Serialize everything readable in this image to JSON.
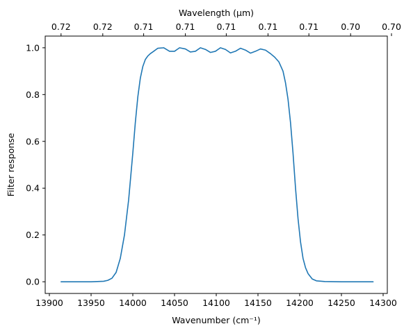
{
  "chart_data": {
    "type": "line",
    "xlabel_bottom": "Wavenumber (cm⁻¹)",
    "xlabel_top": "Wavelength (μm)",
    "ylabel": "Filter response",
    "xlim": [
      13895,
      14305
    ],
    "ylim": [
      -0.05,
      1.05
    ],
    "x_ticks_bottom": [
      13900,
      13950,
      14000,
      14050,
      14100,
      14150,
      14200,
      14250,
      14300
    ],
    "x_ticks_bottom_labels": [
      "13900",
      "13950",
      "14000",
      "14050",
      "14100",
      "14150",
      "14200",
      "14250",
      "14300"
    ],
    "x_ticks_top_labels": [
      "0.72",
      "0.72",
      "0.71",
      "0.71",
      "0.71",
      "0.71",
      "0.71",
      "0.70",
      "0.70",
      "0.70"
    ],
    "x_ticks_top_positions": [
      13914,
      13964,
      14013,
      14063,
      14112,
      14162,
      14211,
      14261,
      14310,
      14360
    ],
    "y_ticks": [
      0.0,
      0.2,
      0.4,
      0.6,
      0.8,
      1.0
    ],
    "y_ticks_labels": [
      "0.0",
      "0.2",
      "0.4",
      "0.6",
      "0.8",
      "1.0"
    ],
    "grid": false,
    "series": [
      {
        "color": "#1f77b4",
        "x": [
          13914,
          13930,
          13950,
          13965,
          13970,
          13975,
          13980,
          13985,
          13990,
          13995,
          14000,
          14003,
          14006,
          14009,
          14012,
          14015,
          14018,
          14021,
          14025,
          14030,
          14037,
          14044,
          14050,
          14056,
          14063,
          14069,
          14075,
          14081,
          14087,
          14093,
          14099,
          14105,
          14111,
          14117,
          14123,
          14129,
          14135,
          14141,
          14147,
          14153,
          14159,
          14165,
          14170,
          14175,
          14180,
          14183,
          14186,
          14189,
          14192,
          14195,
          14198,
          14201,
          14204,
          14207,
          14210,
          14215,
          14220,
          14230,
          14250,
          14270,
          14288
        ],
        "y": [
          0.0,
          0.0,
          0.0,
          0.002,
          0.006,
          0.015,
          0.04,
          0.1,
          0.2,
          0.35,
          0.55,
          0.68,
          0.79,
          0.87,
          0.92,
          0.95,
          0.965,
          0.975,
          0.985,
          0.998,
          1.0,
          0.985,
          0.985,
          1.0,
          0.995,
          0.982,
          0.985,
          1.0,
          0.993,
          0.98,
          0.985,
          1.0,
          0.993,
          0.978,
          0.985,
          0.998,
          0.99,
          0.977,
          0.985,
          0.995,
          0.99,
          0.975,
          0.96,
          0.94,
          0.9,
          0.85,
          0.78,
          0.68,
          0.55,
          0.4,
          0.27,
          0.17,
          0.1,
          0.06,
          0.035,
          0.012,
          0.004,
          0.001,
          0.0,
          0.0,
          0.0
        ]
      }
    ]
  }
}
